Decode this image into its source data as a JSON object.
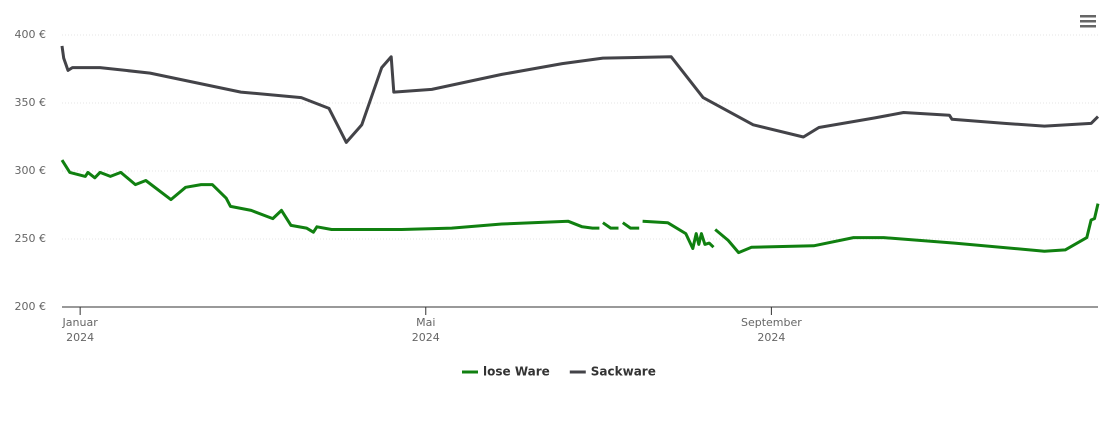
{
  "chart_data": {
    "type": "line",
    "xlim": [
      0.79,
      12.78
    ],
    "xticks": [
      {
        "value": 1,
        "label": "Januar 2024"
      },
      {
        "value": 5,
        "label": "Mai 2024"
      },
      {
        "value": 9,
        "label": "September 2024"
      }
    ],
    "ylim": [
      200,
      400
    ],
    "yticks": [
      {
        "value": 200,
        "label": "200 €"
      },
      {
        "value": 250,
        "label": "250 €"
      },
      {
        "value": 300,
        "label": "300 €"
      },
      {
        "value": 350,
        "label": "350 €"
      },
      {
        "value": 400,
        "label": "400 €"
      }
    ],
    "grid": true,
    "legend": "bottom",
    "series": [
      {
        "name": "lose Ware",
        "color": "#108010",
        "x": [
          0.79,
          0.88,
          1.06,
          1.09,
          1.17,
          1.23,
          1.35,
          1.47,
          1.64,
          1.76,
          2.05,
          2.22,
          2.4,
          2.53,
          2.69,
          2.74,
          2.98,
          3.23,
          3.33,
          3.44,
          3.62,
          3.7,
          3.74,
          3.91,
          4.72,
          5.3,
          5.88,
          6.65,
          6.81,
          6.93,
          7.01,
          null,
          7.05,
          7.14,
          7.23,
          null,
          7.28,
          7.37,
          7.47,
          null,
          7.51,
          7.8,
          8.01,
          8.09,
          8.13,
          8.16,
          8.19,
          8.23,
          8.28,
          8.33,
          null,
          8.35,
          8.5,
          8.62,
          8.77,
          9.49,
          9.95,
          10.3,
          11.12,
          12.16,
          12.4,
          12.65,
          12.7,
          12.74,
          12.78
        ],
        "values": [
          308,
          299,
          296,
          299,
          295,
          299,
          296,
          299,
          290,
          293,
          279,
          288,
          290,
          290,
          280,
          274,
          271,
          265,
          271,
          260,
          258,
          255,
          259,
          257,
          257,
          258,
          261,
          263,
          259,
          258,
          258,
          null,
          262,
          258,
          258,
          null,
          262,
          258,
          258,
          null,
          263,
          262,
          254,
          243,
          254,
          246,
          254,
          246,
          247,
          244,
          null,
          257,
          249,
          240,
          244,
          245,
          251,
          251,
          247,
          241,
          242,
          251,
          264,
          265,
          276
        ]
      },
      {
        "name": "Sackware",
        "color": "#434348",
        "x": [
          0.79,
          0.81,
          0.86,
          0.91,
          1.23,
          1.81,
          2.86,
          3.56,
          3.88,
          4.08,
          4.26,
          4.49,
          4.6,
          4.63,
          5.07,
          5.88,
          6.58,
          7.05,
          7.84,
          8.21,
          8.79,
          9.37,
          9.55,
          10.19,
          10.53,
          11.06,
          11.09,
          11.7,
          12.16,
          12.7,
          12.78
        ],
        "values": [
          392,
          383,
          374,
          376,
          376,
          372,
          358,
          354,
          346,
          321,
          334,
          376,
          384,
          358,
          360,
          371,
          379,
          383,
          384,
          354,
          334,
          325,
          332,
          339,
          343,
          341,
          338,
          335,
          333,
          335,
          340
        ]
      }
    ]
  }
}
